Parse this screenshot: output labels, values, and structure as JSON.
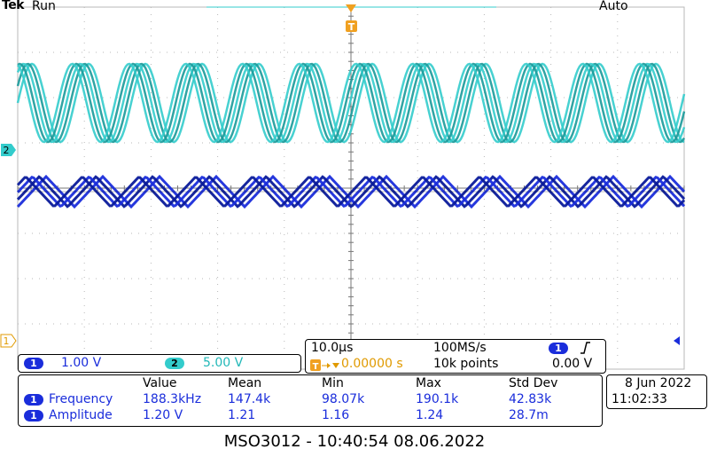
{
  "header": {
    "brand": "Tek",
    "run_state": "Run",
    "trigger_mode": "Auto"
  },
  "markers": {
    "trigger_top": "T",
    "ch2_marker": "2",
    "ch1_marker": "1"
  },
  "channels": {
    "ch1": {
      "label": "1",
      "scale": "1.00 V"
    },
    "ch2": {
      "label": "2",
      "scale": "5.00 V"
    }
  },
  "timebase": {
    "time_per_div": "10.0µs",
    "sample_rate": "100MS/s",
    "trigger_position": "0.00000 s",
    "record_length": "10k points",
    "trigger_channel": "1",
    "trigger_level": "0.00 V"
  },
  "measurements": {
    "headers": [
      "Value",
      "Mean",
      "Min",
      "Max",
      "Std Dev"
    ],
    "rows": [
      {
        "channel": "1",
        "name": "Frequency",
        "value": "188.3kHz",
        "mean": "147.4k",
        "min": "98.07k",
        "max": "190.1k",
        "std": "42.83k"
      },
      {
        "channel": "1",
        "name": "Amplitude",
        "value": "1.20 V",
        "mean": "1.21",
        "min": "1.16",
        "max": "1.24",
        "std": "28.7m"
      }
    ]
  },
  "datetime": {
    "date": "8 Jun 2022",
    "time": "11:02:33"
  },
  "footer": {
    "caption": "MSO3012 - 10:40:54   08.06.2022"
  },
  "colors": {
    "ch1": "#1a2ddb",
    "ch2": "#33cccc",
    "trigger": "#f0a020",
    "grid": "#b8b8b8"
  }
}
